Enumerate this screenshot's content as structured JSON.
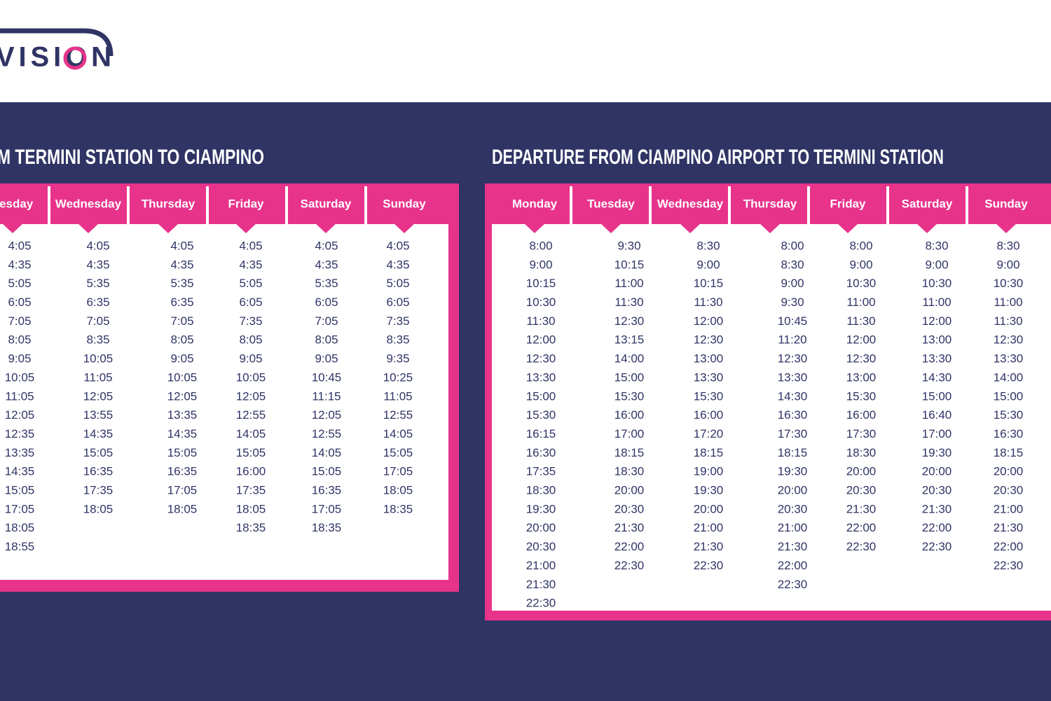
{
  "logo": "VISION",
  "tables": [
    {
      "title": "M TERMINI STATION TO CIAMPINO",
      "columns": [
        {
          "day": "uesday",
          "times": [
            "4:05",
            "4:35",
            "5:05",
            "6:05",
            "7:05",
            "8:05",
            "9:05",
            "10:05",
            "11:05",
            "12:05",
            "12:35",
            "13:35",
            "14:35",
            "15:05",
            "17:05",
            "18:05",
            "18:55"
          ]
        },
        {
          "day": "Wednesday",
          "times": [
            "4:05",
            "4:35",
            "5:35",
            "6:35",
            "7:05",
            "8:35",
            "10:05",
            "11:05",
            "12:05",
            "13:55",
            "14:35",
            "15:05",
            "16:35",
            "17:35",
            "18:05"
          ]
        },
        {
          "day": "Thursday",
          "times": [
            "4:05",
            "4:35",
            "5:35",
            "6:35",
            "7:05",
            "8:05",
            "9:05",
            "10:05",
            "12:05",
            "13:35",
            "14:35",
            "15:05",
            "16:35",
            "17:05",
            "18:05"
          ]
        },
        {
          "day": "Friday",
          "times": [
            "4:05",
            "4:35",
            "5:05",
            "6:05",
            "7:35",
            "8:05",
            "9:05",
            "10:05",
            "12:05",
            "12:55",
            "14:05",
            "15:05",
            "16:00",
            "17:35",
            "18:05",
            "18:35"
          ]
        },
        {
          "day": "Saturday",
          "times": [
            "4:05",
            "4:35",
            "5:35",
            "6:05",
            "7:05",
            "8:05",
            "9:05",
            "10:45",
            "11:15",
            "12:05",
            "12:55",
            "14:05",
            "15:05",
            "16:35",
            "17:05",
            "18:35"
          ]
        },
        {
          "day": "Sunday",
          "times": [
            "4:05",
            "4:35",
            "5:05",
            "6:05",
            "7:35",
            "8:35",
            "9:35",
            "10:25",
            "11:05",
            "12:55",
            "14:05",
            "15:05",
            "17:05",
            "18:05",
            "18:35"
          ]
        }
      ]
    },
    {
      "title": "DEPARTURE FROM CIAMPINO AIRPORT TO TERMINI STATION",
      "columns": [
        {
          "day": "Monday",
          "times": [
            "8:00",
            "9:00",
            "10:15",
            "10:30",
            "11:30",
            "12:00",
            "12:30",
            "13:30",
            "15:00",
            "15:30",
            "16:15",
            "16:30",
            "17:35",
            "18:30",
            "19:30",
            "20:00",
            "20:30",
            "21:00",
            "21:30",
            "22:30"
          ]
        },
        {
          "day": "Tuesday",
          "times": [
            "9:30",
            "10:15",
            "11:00",
            "11:30",
            "12:30",
            "13:15",
            "14:00",
            "15:00",
            "15:30",
            "16:00",
            "17:00",
            "18:15",
            "18:30",
            "20:00",
            "20:30",
            "21:30",
            "22:00",
            "22:30"
          ]
        },
        {
          "day": "Wednesday",
          "times": [
            "8:30",
            "9:00",
            "10:15",
            "11:30",
            "12:00",
            "12:30",
            "13:00",
            "13:30",
            "15:30",
            "16:00",
            "17:20",
            "18:15",
            "19:00",
            "19:30",
            "20:00",
            "21:00",
            "21:30",
            "22:30"
          ]
        },
        {
          "day": "Thursday",
          "times": [
            "8:00",
            "8:30",
            "9:00",
            "9:30",
            "10:45",
            "11:20",
            "12:30",
            "13:30",
            "14:30",
            "16:30",
            "17:30",
            "18:15",
            "19:30",
            "20:00",
            "20:30",
            "21:00",
            "21:30",
            "22:00",
            "22:30"
          ]
        },
        {
          "day": "Friday",
          "times": [
            "8:00",
            "9:00",
            "10:30",
            "11:00",
            "11:30",
            "12:00",
            "12:30",
            "13:00",
            "15:30",
            "16:00",
            "17:30",
            "18:30",
            "20:00",
            "20:30",
            "21:30",
            "22:00",
            "22:30"
          ]
        },
        {
          "day": "Saturday",
          "times": [
            "8:30",
            "9:00",
            "10:30",
            "11:00",
            "12:00",
            "13:00",
            "13:30",
            "14:30",
            "15:00",
            "16:40",
            "17:00",
            "19:30",
            "20:00",
            "20:30",
            "21:30",
            "22:00",
            "22:30"
          ]
        },
        {
          "day": "Sunday",
          "times": [
            "8:30",
            "9:00",
            "10:30",
            "11:00",
            "11:30",
            "12:30",
            "13:30",
            "14:00",
            "15:00",
            "15:30",
            "16:30",
            "18:15",
            "20:00",
            "20:30",
            "21:00",
            "21:30",
            "22:00",
            "22:30"
          ]
        }
      ]
    }
  ]
}
